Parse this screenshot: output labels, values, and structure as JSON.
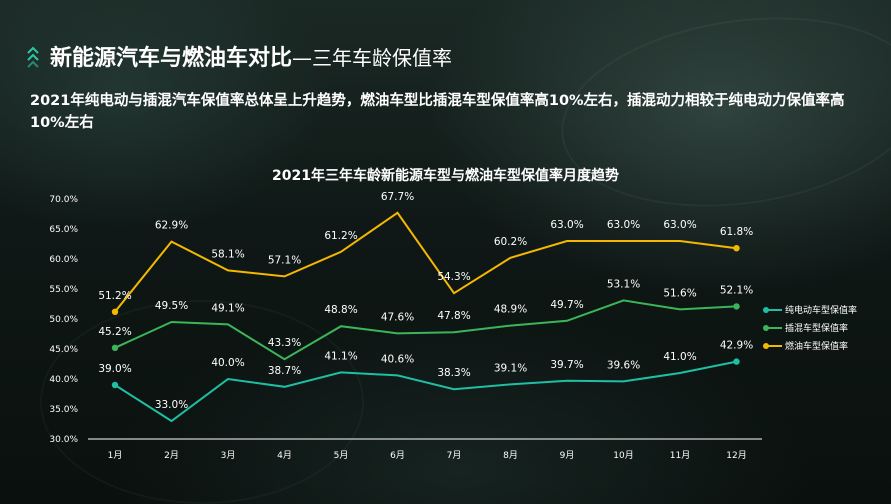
{
  "header": {
    "title_main": "新能源汽车与燃油车对比",
    "title_sub": "—三年车龄保值率",
    "summary": "2021年纯电动与插混汽车保值率总体呈上升趋势，燃油车型比插混车型保值率高10%左右，插混动力相较于纯电动力保值率高10%左右"
  },
  "icons": {
    "header_marker": "double-chevron-up-icon"
  },
  "chart_data": {
    "type": "line",
    "title": "2021年三年车龄新能源车型与燃油车型保值率月度趋势",
    "categories": [
      "1月",
      "2月",
      "3月",
      "4月",
      "5月",
      "6月",
      "7月",
      "8月",
      "9月",
      "10月",
      "11月",
      "12月"
    ],
    "ylim": [
      30,
      70
    ],
    "yticks": [
      "30.0%",
      "35.0%",
      "40.0%",
      "45.0%",
      "50.0%",
      "55.0%",
      "60.0%",
      "65.0%",
      "70.0%"
    ],
    "grid": false,
    "legend_position": "right",
    "series": [
      {
        "name": "纯电动车型保值率",
        "color": "#1fbfa3",
        "values": [
          39.0,
          33.0,
          40.0,
          38.7,
          41.1,
          40.6,
          38.3,
          39.1,
          39.7,
          39.6,
          41.0,
          42.9
        ],
        "labels": [
          "39.0%",
          "33.0%",
          "40.0%",
          "38.7%",
          "41.1%",
          "40.6%",
          "38.3%",
          "39.1%",
          "39.7%",
          "39.6%",
          "41.0%",
          "42.9%"
        ]
      },
      {
        "name": "插混车型保值率",
        "color": "#3cb55a",
        "values": [
          45.2,
          49.5,
          49.1,
          43.3,
          48.8,
          47.6,
          47.8,
          48.9,
          49.7,
          53.1,
          51.6,
          52.1
        ],
        "labels": [
          "45.2%",
          "49.5%",
          "49.1%",
          "43.3%",
          "48.8%",
          "47.6%",
          "47.8%",
          "48.9%",
          "49.7%",
          "53.1%",
          "51.6%",
          "52.1%"
        ]
      },
      {
        "name": "燃油车型保值率",
        "color": "#f5b800",
        "values": [
          51.2,
          62.9,
          58.1,
          57.1,
          61.2,
          67.7,
          54.3,
          60.2,
          63.0,
          63.0,
          63.0,
          61.8
        ],
        "labels": [
          "51.2%",
          "62.9%",
          "58.1%",
          "57.1%",
          "61.2%",
          "67.7%",
          "54.3%",
          "60.2%",
          "63.0%",
          "63.0%",
          "63.0%",
          "61.8%"
        ]
      }
    ]
  }
}
